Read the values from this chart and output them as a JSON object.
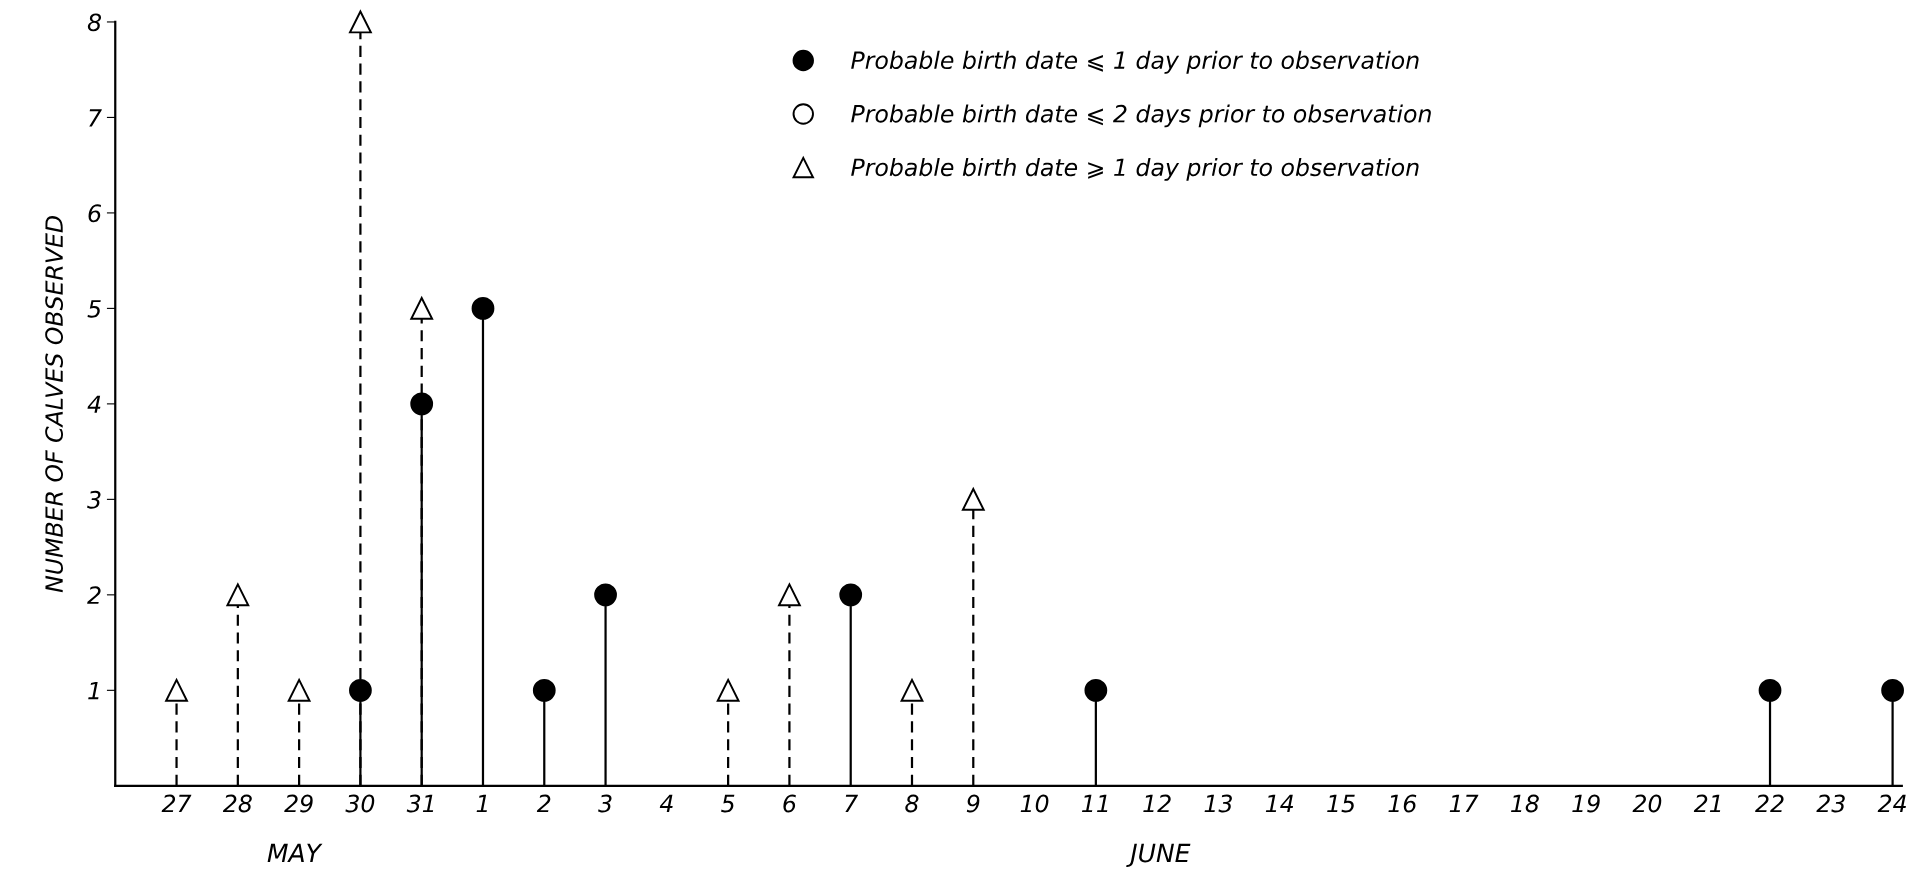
{
  "chart_data": {
    "type": "lollipop",
    "ylabel": "NUMBER OF CALVES OBSERVED",
    "categories": [
      "27",
      "28",
      "29",
      "30",
      "31",
      "1",
      "2",
      "3",
      "4",
      "5",
      "6",
      "7",
      "8",
      "9",
      "10",
      "11",
      "12",
      "13",
      "14",
      "15",
      "16",
      "17",
      "18",
      "19",
      "20",
      "21",
      "22",
      "23",
      "24"
    ],
    "ylim": [
      0,
      8
    ],
    "yticks": [
      1,
      2,
      3,
      4,
      5,
      6,
      7,
      8
    ],
    "legend": "top",
    "annotations": [
      "MAY",
      "JUNE"
    ],
    "series": [
      {
        "name": "Probable birth date ⩽ 1 day prior to observation",
        "color": "#000000",
        "marker": "circle",
        "line_style": "solid",
        "values": [
          null,
          null,
          null,
          1,
          4,
          5,
          1,
          2,
          null,
          null,
          null,
          2,
          null,
          null,
          null,
          1,
          null,
          null,
          null,
          null,
          null,
          null,
          null,
          null,
          null,
          null,
          1,
          null,
          1
        ]
      },
      {
        "name": "Probable birth date ⩽ 2 days prior to observation",
        "color": "#ffffff",
        "marker": "circle",
        "line_style": "solid",
        "values": [
          null,
          null,
          null,
          null,
          null,
          null,
          null,
          null,
          null,
          null,
          null,
          null,
          null,
          null,
          null,
          null,
          null,
          null,
          null,
          null,
          null,
          null,
          null,
          null,
          null,
          null,
          null,
          null,
          null
        ]
      },
      {
        "name": "Probable birth date ⩾ 1 day prior to observation",
        "color": "#ffffff",
        "marker": "triangle",
        "line_style": "dashed",
        "values": [
          1,
          2,
          1,
          8,
          5,
          null,
          null,
          null,
          null,
          1,
          2,
          null,
          1,
          3,
          null,
          null,
          null,
          null,
          null,
          null,
          null,
          null,
          null,
          null,
          null,
          null,
          null,
          null,
          null
        ]
      }
    ]
  }
}
